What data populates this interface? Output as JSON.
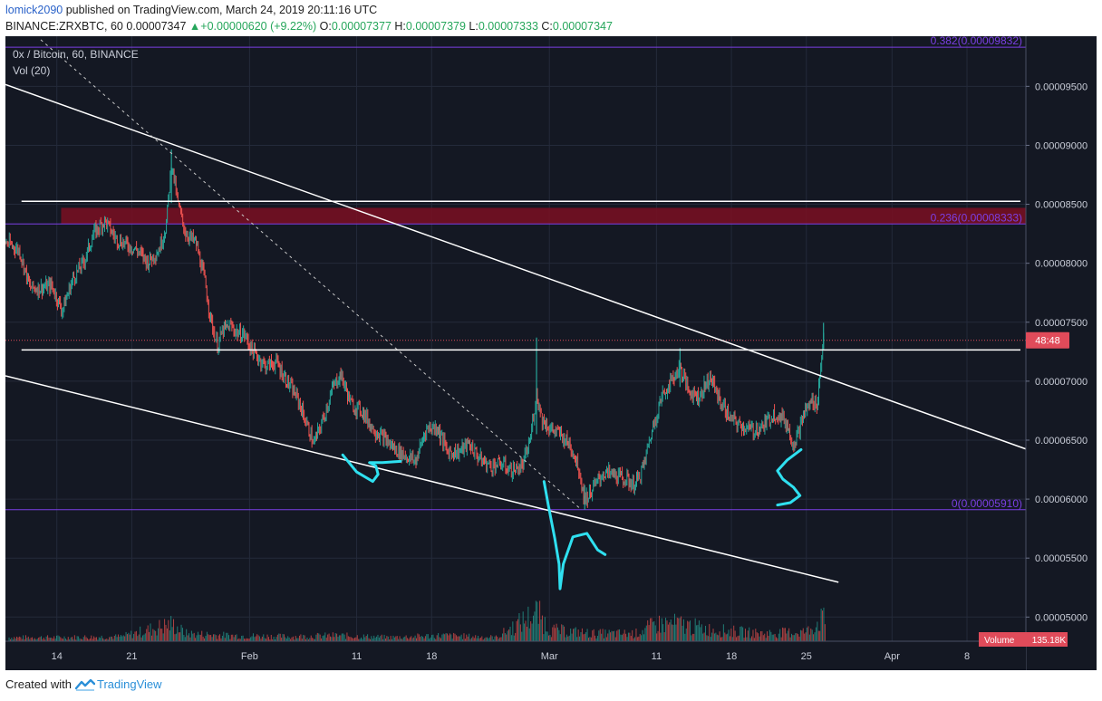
{
  "header": {
    "user": "lomick2090",
    "published_text": " published on TradingView.com, March 24, 2019 20:11:16 UTC",
    "symbol_line": "BINANCE:ZRXBTC, 60",
    "last": "0.00007347",
    "change": "+0.00000620 (+9.22%)",
    "o_label": "O:",
    "o": "0.00007377",
    "h_label": "H:",
    "h": "0.00007379",
    "l_label": "L:",
    "l": "0.00007333",
    "c_label": "C:",
    "c": "0.00007347"
  },
  "footer": {
    "created_with": "Created with",
    "brand": "TradingView"
  },
  "chart_data": {
    "type": "candlestick",
    "title": "0x / Bitcoin, 60, BINANCE",
    "indicator": "Vol (20)",
    "y_ticks": [
      "0.00009500",
      "0.00009000",
      "0.00008500",
      "0.00008000",
      "0.00007500",
      "0.00007000",
      "0.00006500",
      "0.00006000",
      "0.00005500",
      "0.00005000"
    ],
    "y_tick_values": [
      9.5e-05,
      9e-05,
      8.5e-05,
      8e-05,
      7.5e-05,
      7e-05,
      6.5e-05,
      6e-05,
      5.5e-05,
      5e-05
    ],
    "ylim": [
      4.795e-05,
      9.925e-05
    ],
    "x_ticks": [
      "14",
      "21",
      "Feb",
      "11",
      "18",
      "Mar",
      "11",
      "18",
      "25",
      "Apr",
      "8"
    ],
    "x_tick_days": [
      14,
      21,
      32,
      42,
      49,
      60,
      70,
      77,
      84,
      92,
      99
    ],
    "xlim": [
      9.2,
      104.5
    ],
    "x_unit": "days since 2019-01-01 (Jan 14 = 14, Mar 11 = 70)",
    "fib_levels": [
      {
        "label": "0.382(0.00009832)",
        "value": 9.832e-05
      },
      {
        "label": "0.236(0.00008333)",
        "value": 8.333e-05
      },
      {
        "label": "0(0.00005910)",
        "value": 5.91e-05
      }
    ],
    "current_price_label": "48:48",
    "current_price": 7.347e-05,
    "volume_label": "Volume",
    "volume_value": "135.18K",
    "resistance_zone": [
      8.333e-05,
      8.47e-05
    ],
    "horizontal_lines": [
      8.525e-05,
      7.265e-05
    ],
    "trendlines": [
      {
        "style": "solid",
        "from": [
          9.2,
          9.515e-05
        ],
        "to": [
          104.5,
          6.425e-05
        ]
      },
      {
        "style": "solid",
        "from": [
          9.2,
          7.045e-05
        ],
        "to": [
          87.0,
          5.295e-05
        ]
      },
      {
        "style": "dashed",
        "from": [
          12.5,
          9.895e-05
        ],
        "to": [
          63.0,
          5.91e-05
        ]
      }
    ],
    "price_path": [
      [
        9.2,
        8.18e-05
      ],
      [
        10.5,
        8.11e-05
      ],
      [
        11.5,
        7.79e-05
      ],
      [
        12.5,
        7.79e-05
      ],
      [
        13.5,
        7.81e-05
      ],
      [
        14.5,
        7.6e-05
      ],
      [
        15.5,
        7.87e-05
      ],
      [
        16.5,
        8.01e-05
      ],
      [
        17.5,
        8.26e-05
      ],
      [
        18.5,
        8.36e-05
      ],
      [
        19.5,
        8.21e-05
      ],
      [
        20.5,
        8.16e-05
      ],
      [
        21.5,
        8.11e-05
      ],
      [
        22.5,
        8.01e-05
      ],
      [
        23.5,
        8.11e-05
      ],
      [
        24.2,
        8.31e-05
      ],
      [
        24.7,
        8.86e-05
      ],
      [
        25.3,
        8.51e-05
      ],
      [
        26.0,
        8.26e-05
      ],
      [
        27.0,
        8.17e-05
      ],
      [
        27.8,
        7.86e-05
      ],
      [
        28.4,
        7.51e-05
      ],
      [
        29.0,
        7.3e-05
      ],
      [
        29.5,
        7.43e-05
      ],
      [
        30.2,
        7.47e-05
      ],
      [
        31.0,
        7.4e-05
      ],
      [
        31.5,
        7.4e-05
      ],
      [
        32.3,
        7.25e-05
      ],
      [
        33.5,
        7.13e-05
      ],
      [
        34.5,
        7.16e-05
      ],
      [
        35.5,
        7e-05
      ],
      [
        36.5,
        6.85e-05
      ],
      [
        37.2,
        6.67e-05
      ],
      [
        38.0,
        6.47e-05
      ],
      [
        38.8,
        6.66e-05
      ],
      [
        39.8,
        6.95e-05
      ],
      [
        40.5,
        7.06e-05
      ],
      [
        41.5,
        6.8e-05
      ],
      [
        42.5,
        6.75e-05
      ],
      [
        43.5,
        6.6e-05
      ],
      [
        44.5,
        6.52e-05
      ],
      [
        45.5,
        6.43e-05
      ],
      [
        46.5,
        6.37e-05
      ],
      [
        47.5,
        6.32e-05
      ],
      [
        48.5,
        6.6e-05
      ],
      [
        49.5,
        6.61e-05
      ],
      [
        50.5,
        6.4e-05
      ],
      [
        51.5,
        6.4e-05
      ],
      [
        52.5,
        6.47e-05
      ],
      [
        53.5,
        6.34e-05
      ],
      [
        54.5,
        6.28e-05
      ],
      [
        55.5,
        6.3e-05
      ],
      [
        56.5,
        6.24e-05
      ],
      [
        57.5,
        6.28e-05
      ],
      [
        58.2,
        6.5e-05
      ],
      [
        58.8,
        6.9e-05
      ],
      [
        59.3,
        6.68e-05
      ],
      [
        60.0,
        6.6e-05
      ],
      [
        61.0,
        6.55e-05
      ],
      [
        62.0,
        6.45e-05
      ],
      [
        62.7,
        6.28e-05
      ],
      [
        63.3,
        5.99e-05
      ],
      [
        64.0,
        6.08e-05
      ],
      [
        65.0,
        6.22e-05
      ],
      [
        66.0,
        6.21e-05
      ],
      [
        67.0,
        6.17e-05
      ],
      [
        68.0,
        6.12e-05
      ],
      [
        68.8,
        6.28e-05
      ],
      [
        69.3,
        6.48e-05
      ],
      [
        70.0,
        6.72e-05
      ],
      [
        70.5,
        6.87e-05
      ],
      [
        71.5,
        7.02e-05
      ],
      [
        72.2,
        7.12e-05
      ],
      [
        73.0,
        6.92e-05
      ],
      [
        74.0,
        6.87e-05
      ],
      [
        75.0,
        7.04e-05
      ],
      [
        76.0,
        6.82e-05
      ],
      [
        77.0,
        6.67e-05
      ],
      [
        78.0,
        6.62e-05
      ],
      [
        79.0,
        6.58e-05
      ],
      [
        80.0,
        6.62e-05
      ],
      [
        81.0,
        6.73e-05
      ],
      [
        82.0,
        6.67e-05
      ],
      [
        82.8,
        6.47e-05
      ],
      [
        83.3,
        6.58e-05
      ],
      [
        83.8,
        6.73e-05
      ],
      [
        84.5,
        6.83e-05
      ],
      [
        85.0,
        6.81e-05
      ],
      [
        85.4,
        7.17e-05
      ],
      [
        85.6,
        7.4e-05
      ],
      [
        85.7,
        7.35e-05
      ]
    ],
    "spikes": [
      {
        "x": 24.7,
        "high": 8.965e-05,
        "low": 8.51e-05
      },
      {
        "x": 58.8,
        "high": 7.37e-05,
        "low": 6.55e-05
      },
      {
        "x": 72.2,
        "high": 7.28e-05,
        "low": 6.95e-05
      },
      {
        "x": 85.6,
        "high": 7.495e-05,
        "low": 7.28e-05
      },
      {
        "x": 63.3,
        "high": 6.12e-05,
        "low": 5.91e-05
      }
    ],
    "volume_path": [
      [
        9.5,
        0.1
      ],
      [
        14,
        0.1
      ],
      [
        20,
        0.12
      ],
      [
        24.7,
        0.45
      ],
      [
        26,
        0.2
      ],
      [
        30,
        0.15
      ],
      [
        36,
        0.12
      ],
      [
        40,
        0.15
      ],
      [
        45,
        0.1
      ],
      [
        50,
        0.15
      ],
      [
        55,
        0.1
      ],
      [
        58.8,
        0.75
      ],
      [
        60,
        0.3
      ],
      [
        64,
        0.2
      ],
      [
        68,
        0.2
      ],
      [
        70,
        0.45
      ],
      [
        72,
        0.45
      ],
      [
        75,
        0.3
      ],
      [
        80,
        0.2
      ],
      [
        84,
        0.25
      ],
      [
        85.5,
        0.6
      ],
      [
        85.8,
        0.4
      ]
    ]
  },
  "annotations": [
    {
      "label": "S",
      "points": [
        [
          40.7,
          6.375e-05
        ],
        [
          42.0,
          6.23e-05
        ],
        [
          43.5,
          6.15e-05
        ],
        [
          44.0,
          6.21e-05
        ],
        [
          43.8,
          6.28e-05
        ],
        [
          43.2,
          6.31e-05
        ],
        [
          44.4,
          6.31e-05
        ],
        [
          46.1,
          6.32e-05
        ]
      ]
    },
    {
      "label": "H",
      "points": [
        [
          59.5,
          6.15e-05
        ],
        [
          59.9,
          5.95e-05
        ],
        [
          60.5,
          5.67e-05
        ],
        [
          60.9,
          5.45e-05
        ],
        [
          61.0,
          5.24e-05
        ],
        [
          61.3,
          5.45e-05
        ],
        [
          62.2,
          5.68e-05
        ],
        [
          63.5,
          5.71e-05
        ],
        [
          64.5,
          5.57e-05
        ],
        [
          65.2,
          5.53e-05
        ]
      ]
    },
    {
      "label": "S",
      "points": [
        [
          83.5,
          6.42e-05
        ],
        [
          82.2,
          6.33e-05
        ],
        [
          81.3,
          6.24e-05
        ],
        [
          81.8,
          6.17e-05
        ],
        [
          82.8,
          6.1e-05
        ],
        [
          83.4,
          6.03e-05
        ],
        [
          82.5,
          5.97e-05
        ],
        [
          81.3,
          5.95e-05
        ]
      ]
    }
  ],
  "colors": {
    "background": "#141823",
    "grid": "#242a3a",
    "up": "#26a69a",
    "down": "#ef5350",
    "fib": "#7b3fe4",
    "zone": "#7a0f22",
    "price_line": "#e04b5a",
    "annotation": "#2fe0f0"
  }
}
